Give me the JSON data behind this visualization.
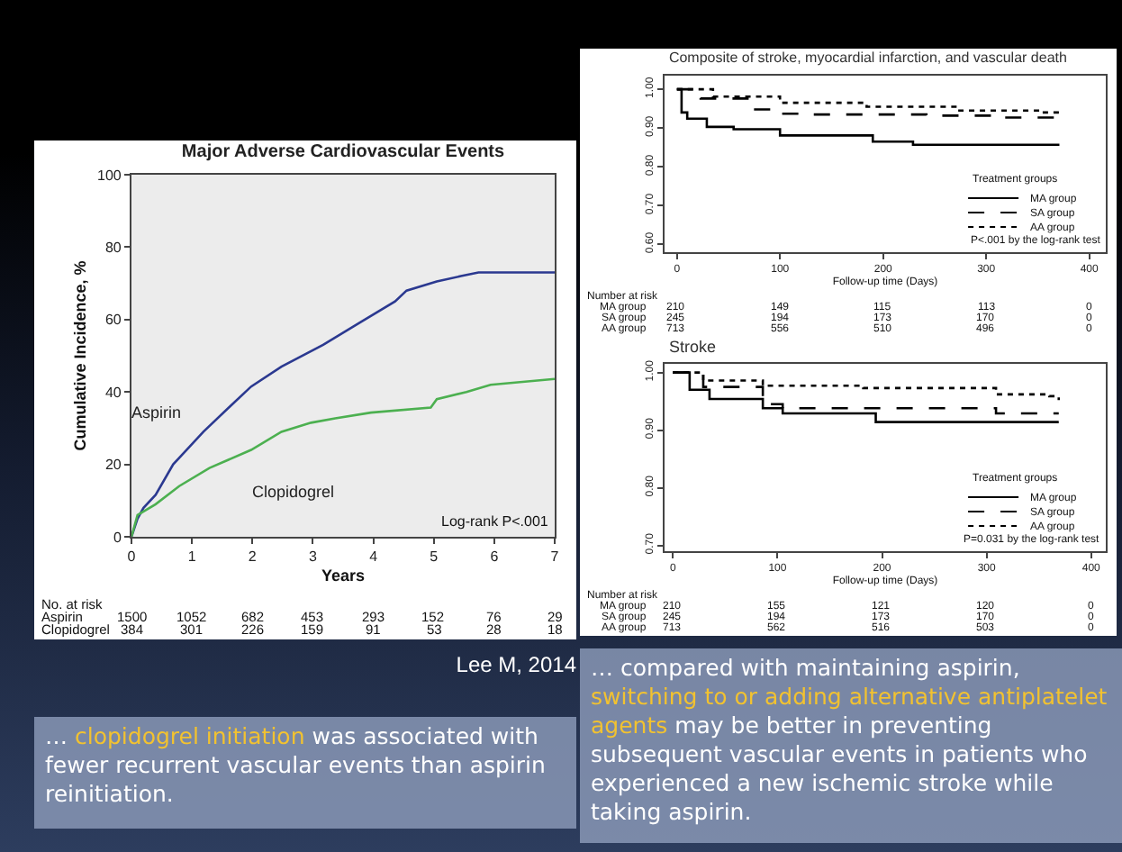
{
  "chart_data": [
    {
      "type": "line",
      "title": "Major Adverse Cardiovascular Events",
      "xlabel": "Years",
      "ylabel": "Cumulative Incidence, %",
      "xlim": [
        0,
        7
      ],
      "ylim": [
        0,
        100
      ],
      "xticks": [
        0,
        1,
        2,
        3,
        4,
        5,
        6,
        7
      ],
      "yticks": [
        0,
        20,
        40,
        60,
        80,
        100
      ],
      "legend": false,
      "series": [
        {
          "name": "Aspirin",
          "color": "#2b3990",
          "x": [
            0,
            0.1,
            0.2,
            0.4,
            0.69,
            1.19,
            1.63,
            1.98,
            2.48,
            3.17,
            3.76,
            4.36,
            4.55,
            5.05,
            5.45,
            5.74,
            7
          ],
          "values": [
            0,
            5,
            8,
            11.6,
            20,
            29,
            36,
            41.5,
            47,
            53,
            59,
            65,
            68,
            70.5,
            72,
            73,
            73
          ]
        },
        {
          "name": "Clopidogrel",
          "color": "#4cb050",
          "x": [
            0,
            0.1,
            0.4,
            0.79,
            1.29,
            1.98,
            2.48,
            2.97,
            3.37,
            3.96,
            4.95,
            5.05,
            5.54,
            5.94,
            7
          ],
          "values": [
            0,
            6,
            9,
            14,
            19,
            24,
            29,
            31.5,
            32.7,
            34.3,
            35.7,
            38,
            40,
            42,
            43.6
          ]
        }
      ],
      "annotations": [
        "Log-rank P<.001",
        "No. at risk",
        "Aspirin  1500  1052  682  453  293  152  76  29",
        "Clopidogrel  384  301  226  159  91  53  28  18",
        "Lee M, 2014"
      ]
    },
    {
      "type": "step",
      "title": "Composite of stroke, myocardial infarction, and vascular death",
      "xlabel": "Follow-up time (Days)",
      "xlim": [
        -12,
        416
      ],
      "ylim": [
        0.58,
        1.035
      ],
      "xticks": [
        0,
        100,
        200,
        300,
        400
      ],
      "yticks": [
        {
          "value": 0.6,
          "label": "0.60"
        },
        {
          "value": 0.7,
          "label": "0.70"
        },
        {
          "value": 0.8,
          "label": "0.80"
        },
        {
          "value": 0.9,
          "label": "0.90"
        },
        {
          "value": 1.0,
          "label": "1.00"
        }
      ],
      "legend": "bottom right",
      "legend_title": "Treatment groups",
      "series": [
        {
          "name": "MA group",
          "color": "#000000",
          "line_style": "solid",
          "x": [
            0,
            4.5,
            10,
            29,
            55,
            100,
            184,
            190,
            229,
            371
          ],
          "values": [
            1.0,
            0.94,
            0.924,
            0.903,
            0.897,
            0.881,
            0.881,
            0.865,
            0.857,
            0.857
          ]
        },
        {
          "name": "SA group",
          "color": "#000000",
          "line_style": "dashed",
          "x": [
            0,
            23,
            74,
            100,
            126,
            242,
            313,
            371
          ],
          "values": [
            1.0,
            0.976,
            0.948,
            0.937,
            0.935,
            0.932,
            0.927,
            0.927
          ]
        },
        {
          "name": "AA group",
          "color": "#000000",
          "line_style": "dotted",
          "x": [
            0,
            35,
            100,
            184,
            274,
            352,
            371
          ],
          "values": [
            1.0,
            0.981,
            0.965,
            0.955,
            0.945,
            0.94,
            0.932
          ]
        }
      ],
      "annotations": [
        "P<.001 by the log-rank test",
        "Number at risk",
        "MA group  210  149  115  113  0",
        "SA group  245  194  173  170  0",
        "AA group  713  556  510  496  0"
      ]
    },
    {
      "type": "step",
      "title": "Stroke",
      "xlabel": "Follow-up time (Days)",
      "xlim": [
        -8,
        414
      ],
      "ylim": [
        0.69,
        1.015
      ],
      "xticks": [
        0,
        100,
        200,
        300,
        400
      ],
      "yticks": [
        {
          "value": 0.7,
          "label": "0.70"
        },
        {
          "value": 0.8,
          "label": "0.80"
        },
        {
          "value": 0.9,
          "label": "0.90"
        },
        {
          "value": 1.0,
          "label": "1.00"
        }
      ],
      "legend": "bottom right",
      "legend_title": "Treatment groups",
      "series": [
        {
          "name": "MA group",
          "color": "#000000",
          "line_style": "solid",
          "x": [
            0,
            16,
            35,
            86,
            105,
            188,
            194,
            369
          ],
          "values": [
            1.0,
            0.97,
            0.954,
            0.938,
            0.929,
            0.929,
            0.914,
            0.914
          ]
        },
        {
          "name": "SA group",
          "color": "#000000",
          "line_style": "dashed",
          "x": [
            0,
            29,
            86,
            105,
            303,
            309,
            369
          ],
          "values": [
            1.0,
            0.975,
            0.945,
            0.938,
            0.938,
            0.929,
            0.929
          ]
        },
        {
          "name": "AA group",
          "color": "#000000",
          "line_style": "dotted",
          "x": [
            0,
            29,
            86,
            182,
            309,
            360,
            369
          ],
          "values": [
            1.0,
            0.986,
            0.977,
            0.973,
            0.962,
            0.959,
            0.952
          ]
        }
      ],
      "annotations": [
        "P=0.031 by the log-rank test",
        "Number at risk",
        "MA group  210  155  121  120  0",
        "SA group  245  194  173  170  0",
        "AA group  713  562  516  503  0"
      ]
    },
    {
      "type": "other",
      "annotations": [
        "…",
        "clopidogrel initiation",
        "was associated with fewer recurrent vascular events than aspirin reinitiation."
      ]
    },
    {
      "type": "other",
      "annotations": [
        "… compared with maintaining aspirin,",
        "switching to or adding alternative antiplatelet agents",
        "may be better in preventing subsequent vascular events in patients who experienced a new ischemic stroke while taking aspirin."
      ]
    }
  ]
}
